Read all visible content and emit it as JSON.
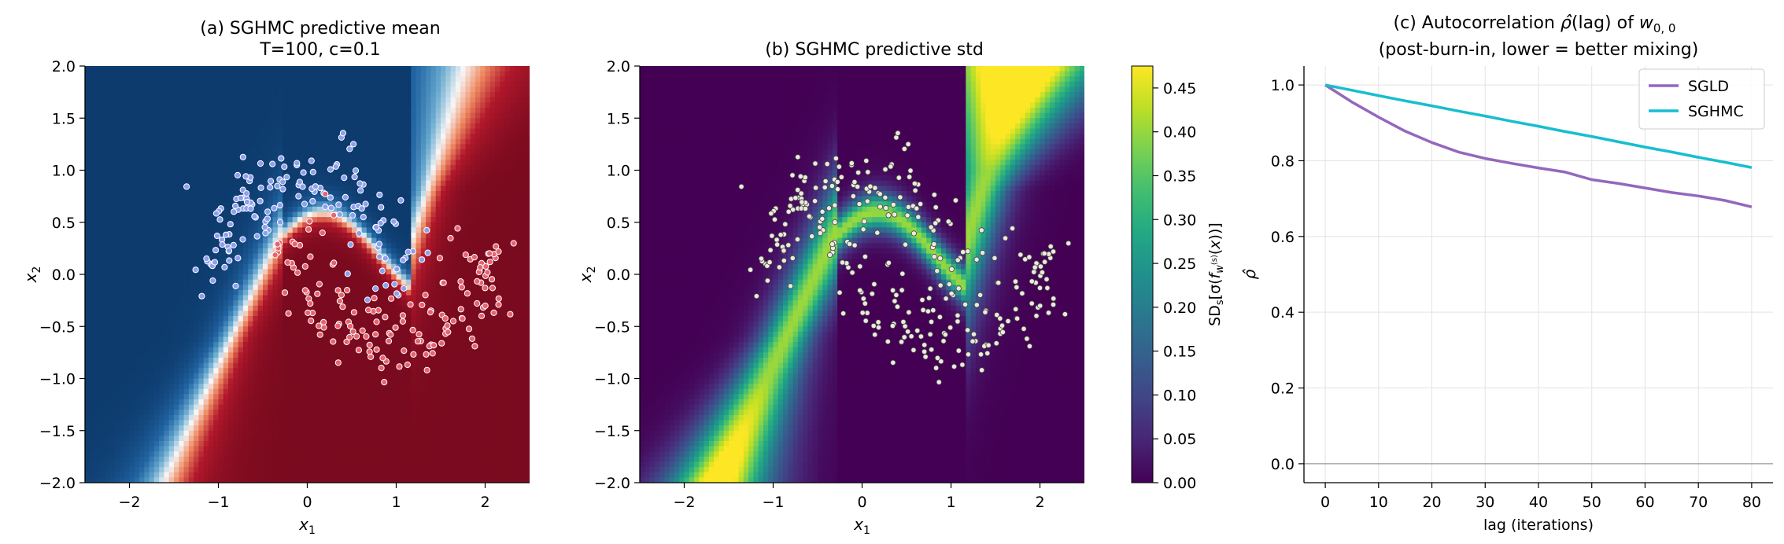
{
  "chart_data": [
    {
      "type": "heatmap",
      "panel": "a",
      "title": "(a) SGHMC predictive mean",
      "subtitle": "T=100, c=0.1",
      "xlabel": "x_1",
      "ylabel": "x_2",
      "xlim": [
        -2.5,
        2.5
      ],
      "ylim": [
        -2.0,
        2.0
      ],
      "xticks": [
        -2,
        -1,
        0,
        1,
        2
      ],
      "yticks": [
        -2.0,
        -1.5,
        -1.0,
        -0.5,
        0.0,
        0.5,
        1.0,
        1.5,
        2.0
      ],
      "colormap": "RdBu_r",
      "colors": {
        "class0": "#8da0f0",
        "class1": "#e8636e",
        "low": "#0d3b6e",
        "high": "#7a0a1f"
      },
      "scatter": "two-moons training points (class 0 upper moon, class 1 lower moon)"
    },
    {
      "type": "heatmap",
      "panel": "b",
      "title": "(b) SGHMC predictive std",
      "xlabel": "x_1",
      "ylabel": "x_2",
      "xlim": [
        -2.5,
        2.5
      ],
      "ylim": [
        -2.0,
        2.0
      ],
      "xticks": [
        -2,
        -1,
        0,
        1,
        2
      ],
      "yticks": [
        -2.0,
        -1.5,
        -1.0,
        -0.5,
        0.0,
        0.5,
        1.0,
        1.5,
        2.0
      ],
      "colormap": "viridis",
      "colorbar": {
        "label": "SD_s[σ(f_{w^(s)}(x))]",
        "range": [
          0.0,
          0.475
        ],
        "ticks": [
          0.0,
          0.05,
          0.1,
          0.15,
          0.2,
          0.25,
          0.3,
          0.35,
          0.4,
          0.45
        ],
        "tick_labels": [
          "0.00",
          "0.05",
          "0.10",
          "0.15",
          "0.20",
          "0.25",
          "0.30",
          "0.35",
          "0.40",
          "0.45"
        ]
      }
    },
    {
      "type": "line",
      "panel": "c",
      "title": "(c) Autocorrelation ρ̂(lag) of w_{0,0}",
      "subtitle": "(post-burn-in, lower = better mixing)",
      "xlabel": "lag (iterations)",
      "ylabel": "ρ̂",
      "xlim": [
        -4,
        84
      ],
      "ylim": [
        -0.05,
        1.05
      ],
      "xticks": [
        0,
        10,
        20,
        30,
        40,
        50,
        60,
        70,
        80
      ],
      "yticks": [
        0.0,
        0.2,
        0.4,
        0.6,
        0.8,
        1.0
      ],
      "ytick_labels": [
        "0.0",
        "0.2",
        "0.4",
        "0.6",
        "0.8",
        "1.0"
      ],
      "grid": true,
      "legend": "top-right",
      "hline": 0.0,
      "x": [
        0,
        5,
        10,
        15,
        20,
        25,
        30,
        35,
        40,
        45,
        50,
        55,
        60,
        65,
        70,
        75,
        80
      ],
      "series": [
        {
          "name": "SGLD",
          "color": "#9467bd",
          "values": [
            1.0,
            0.955,
            0.915,
            0.878,
            0.848,
            0.823,
            0.806,
            0.793,
            0.781,
            0.77,
            0.75,
            0.74,
            0.728,
            0.716,
            0.707,
            0.695,
            0.678
          ]
        },
        {
          "name": "SGHMC",
          "color": "#17becf",
          "values": [
            1.0,
            0.986,
            0.972,
            0.958,
            0.945,
            0.931,
            0.918,
            0.904,
            0.891,
            0.877,
            0.864,
            0.85,
            0.836,
            0.823,
            0.809,
            0.796,
            0.782
          ]
        }
      ]
    }
  ]
}
